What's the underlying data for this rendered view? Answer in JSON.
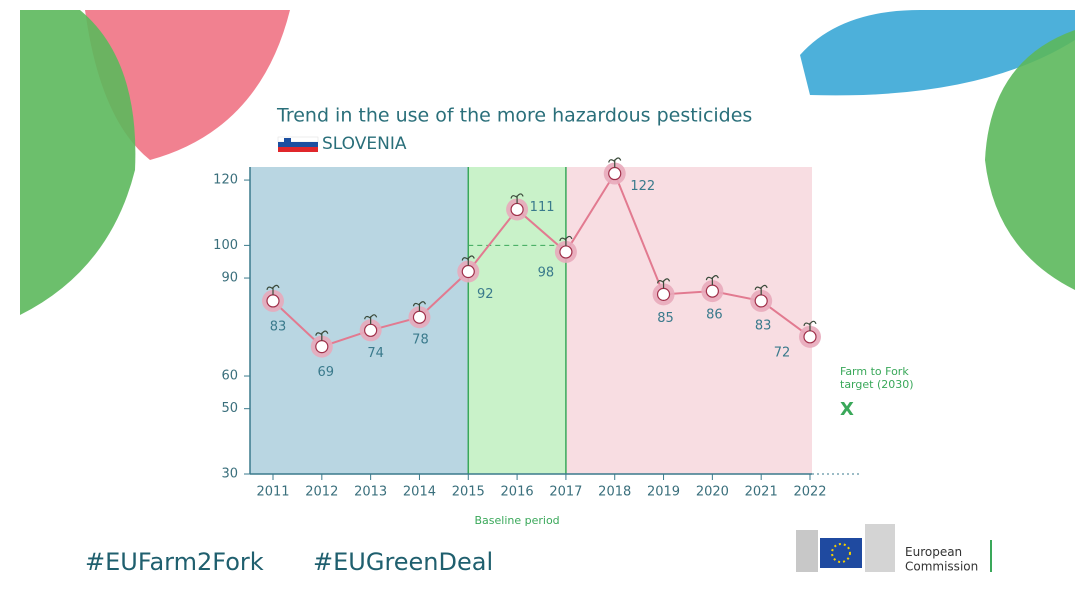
{
  "chart_data": {
    "type": "line",
    "title": "Trend in the use of the more hazardous pesticides",
    "subtitle": "SLOVENIA",
    "categories": [
      "2011",
      "2012",
      "2013",
      "2014",
      "2015",
      "2016",
      "2017",
      "2018",
      "2019",
      "2020",
      "2021",
      "2022"
    ],
    "series": [
      {
        "name": "Use of more hazardous pesticides",
        "color": "#e27a90",
        "values": [
          83,
          69,
          74,
          78,
          92,
          111,
          98,
          122,
          85,
          86,
          83,
          72
        ]
      }
    ],
    "ylim": [
      30,
      124
    ],
    "yticks": [
      30,
      50,
      60,
      90,
      100,
      120
    ],
    "baseline_period": {
      "label": "Baseline period",
      "start": "2015",
      "end": "2017",
      "level": 100
    },
    "target": {
      "label": "Farm to Fork target (2030)",
      "marker": "X"
    },
    "hashtags": [
      "#EUFarm2Fork",
      "#EUGreenDeal"
    ],
    "organization": "European Commission"
  }
}
